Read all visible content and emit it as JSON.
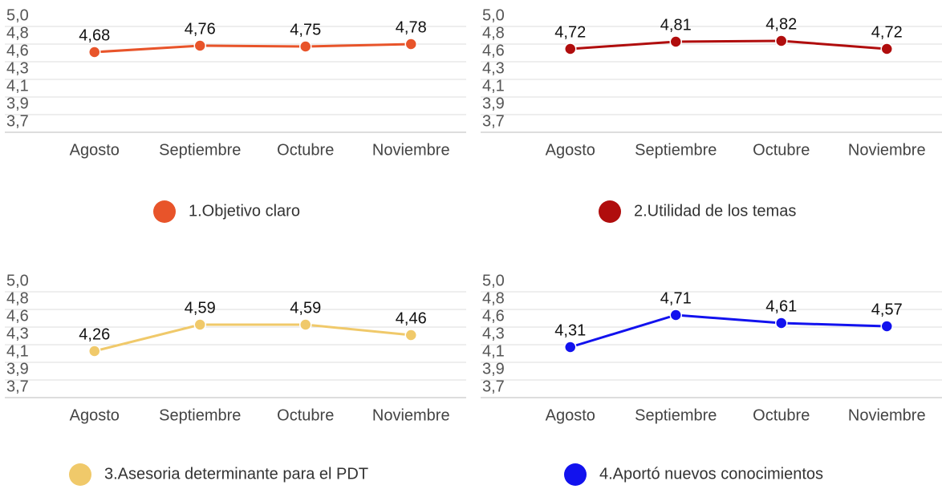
{
  "chart_data": [
    {
      "type": "line",
      "categories": [
        "Agosto",
        "Septiembre",
        "Octubre",
        "Noviembre"
      ],
      "series": [
        {
          "name": "1.Objetivo claro",
          "color": "#e8542a",
          "values": [
            4.68,
            4.76,
            4.75,
            4.78
          ],
          "value_labels": [
            "4,68",
            "4,76",
            "4,75",
            "4,78"
          ]
        }
      ],
      "ylim": [
        3.68,
        5.0
      ],
      "yticks": [
        {
          "value": 3.68,
          "label": "3,7"
        },
        {
          "value": 3.9,
          "label": "3,9"
        },
        {
          "value": 4.12,
          "label": "4,1"
        },
        {
          "value": 4.34,
          "label": "4,3"
        },
        {
          "value": 4.56,
          "label": "4,6"
        },
        {
          "value": 4.78,
          "label": "4,8"
        },
        {
          "value": 5.0,
          "label": "5,0"
        }
      ]
    },
    {
      "type": "line",
      "categories": [
        "Agosto",
        "Septiembre",
        "Octubre",
        "Noviembre"
      ],
      "series": [
        {
          "name": "2.Utilidad de los temas",
          "color": "#b00d0d",
          "values": [
            4.72,
            4.81,
            4.82,
            4.72
          ],
          "value_labels": [
            "4,72",
            "4,81",
            "4,82",
            "4,72"
          ]
        }
      ],
      "ylim": [
        3.68,
        5.0
      ],
      "yticks": [
        {
          "value": 3.68,
          "label": "3,7"
        },
        {
          "value": 3.9,
          "label": "3,9"
        },
        {
          "value": 4.12,
          "label": "4,1"
        },
        {
          "value": 4.34,
          "label": "4,3"
        },
        {
          "value": 4.56,
          "label": "4,6"
        },
        {
          "value": 4.78,
          "label": "4,8"
        },
        {
          "value": 5.0,
          "label": "5,0"
        }
      ]
    },
    {
      "type": "line",
      "categories": [
        "Agosto",
        "Septiembre",
        "Octubre",
        "Noviembre"
      ],
      "series": [
        {
          "name": "3.Asesoria determinante para el PDT",
          "color": "#f0c96a",
          "values": [
            4.26,
            4.59,
            4.59,
            4.46
          ],
          "value_labels": [
            "4,26",
            "4,59",
            "4,59",
            "4,46"
          ]
        }
      ],
      "ylim": [
        3.68,
        5.0
      ],
      "yticks": [
        {
          "value": 3.68,
          "label": "3,7"
        },
        {
          "value": 3.9,
          "label": "3,9"
        },
        {
          "value": 4.12,
          "label": "4,1"
        },
        {
          "value": 4.34,
          "label": "4,3"
        },
        {
          "value": 4.56,
          "label": "4,6"
        },
        {
          "value": 4.78,
          "label": "4,8"
        },
        {
          "value": 5.0,
          "label": "5,0"
        }
      ]
    },
    {
      "type": "line",
      "categories": [
        "Agosto",
        "Septiembre",
        "Octubre",
        "Noviembre"
      ],
      "series": [
        {
          "name": "4.Aportó nuevos conocimientos",
          "color": "#1212ee",
          "values": [
            4.31,
            4.71,
            4.61,
            4.57
          ],
          "value_labels": [
            "4,31",
            "4,71",
            "4,61",
            "4,57"
          ]
        }
      ],
      "ylim": [
        3.68,
        5.0
      ],
      "yticks": [
        {
          "value": 3.68,
          "label": "3,7"
        },
        {
          "value": 3.9,
          "label": "3,9"
        },
        {
          "value": 4.12,
          "label": "4,1"
        },
        {
          "value": 4.34,
          "label": "4,3"
        },
        {
          "value": 4.56,
          "label": "4,6"
        },
        {
          "value": 4.78,
          "label": "4,8"
        },
        {
          "value": 5.0,
          "label": "5,0"
        }
      ]
    }
  ]
}
